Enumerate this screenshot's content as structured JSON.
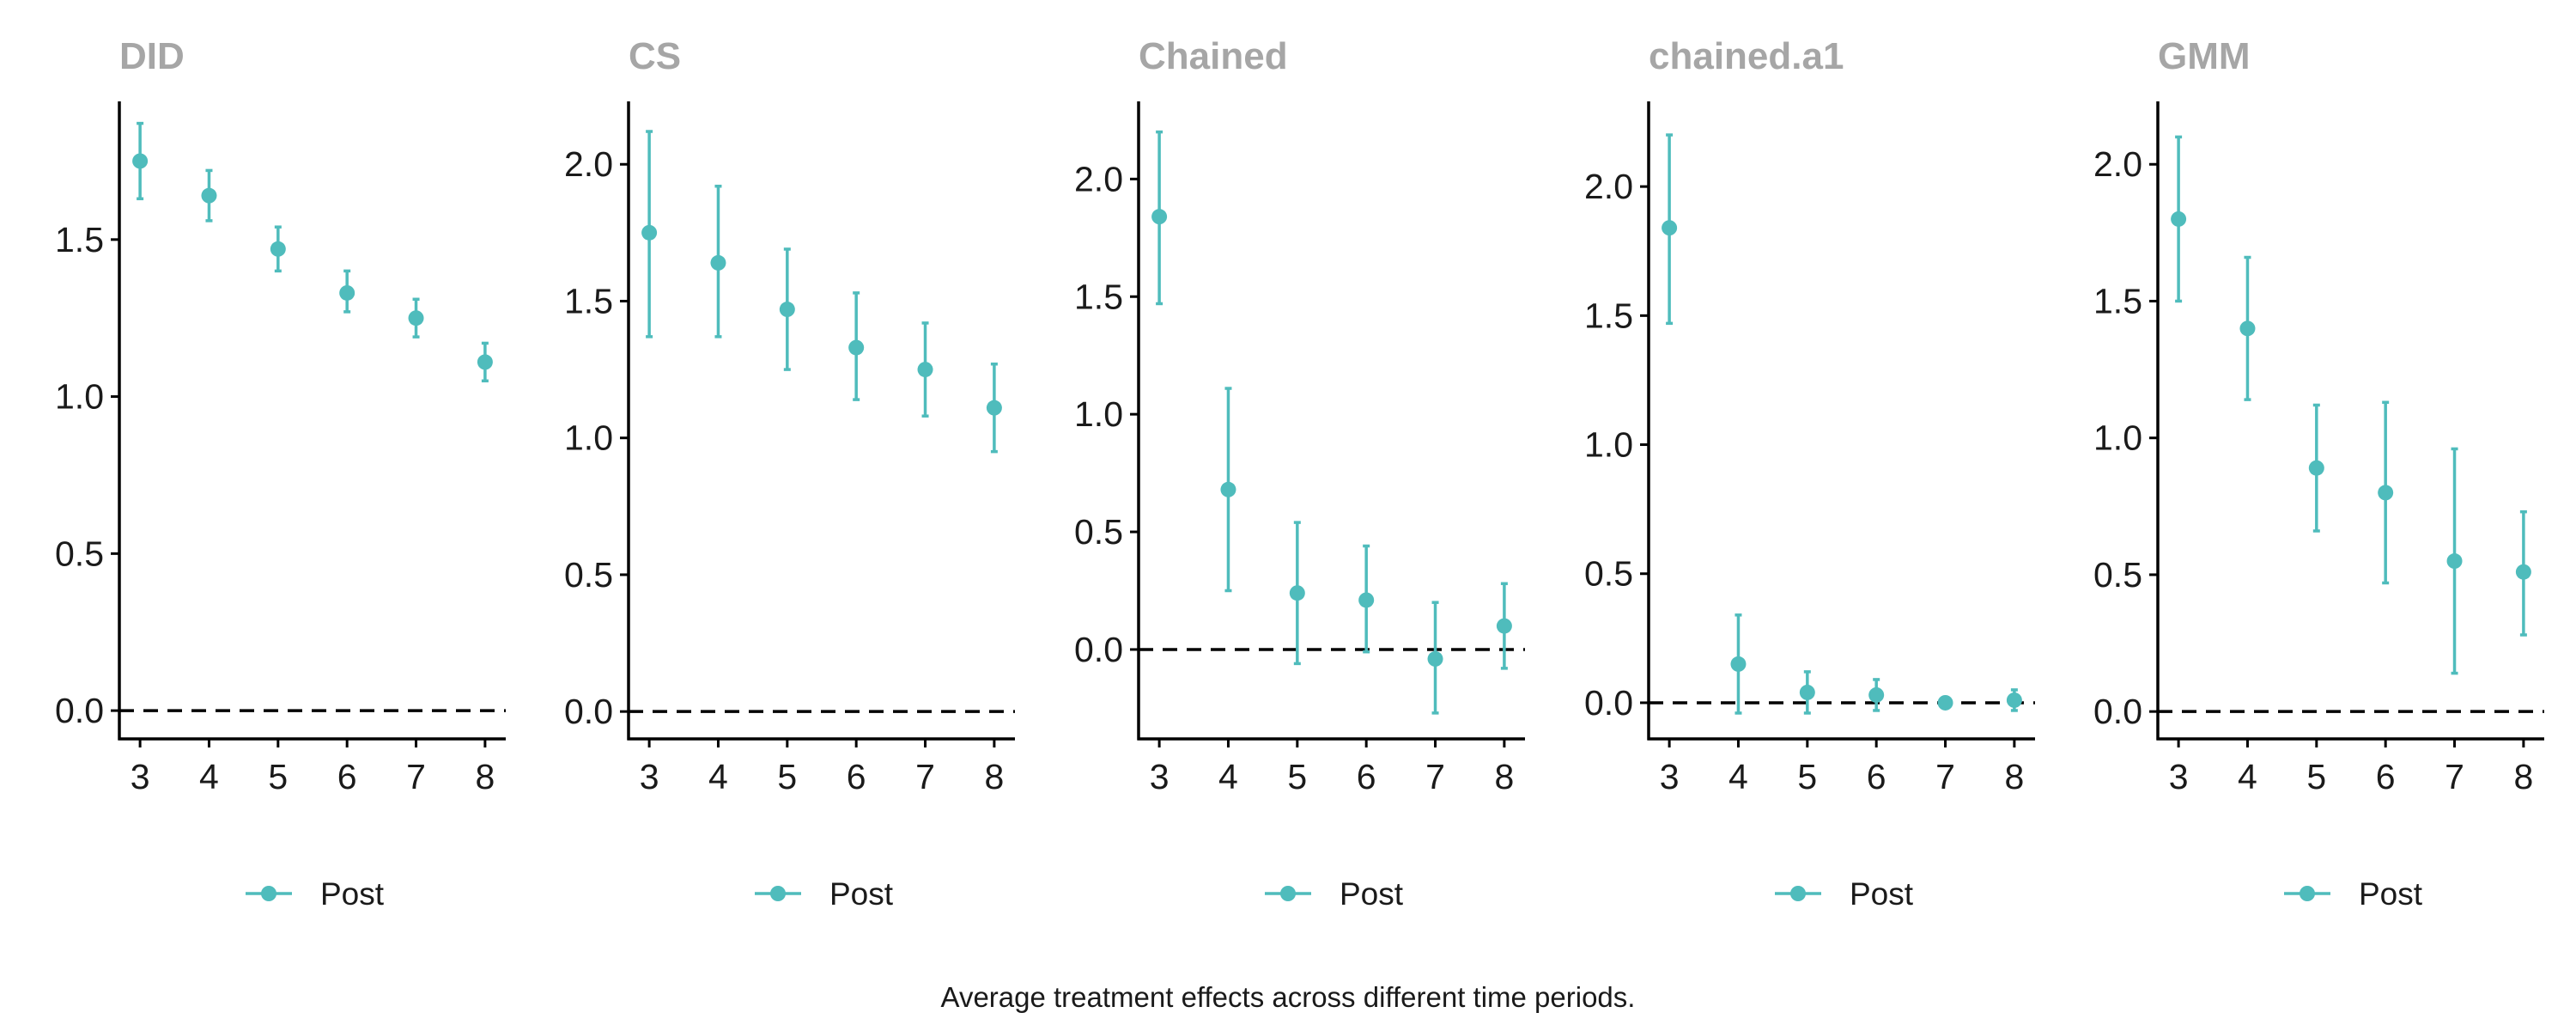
{
  "caption": "Average treatment effects across different time periods.",
  "colors": {
    "series": "#4fbcbc",
    "axis": "#000000",
    "title": "#a6a6a6",
    "reference_line": "#000000"
  },
  "chart_data": [
    {
      "type": "scatter",
      "title": "DID",
      "legend": "Post",
      "legend_position": "bottom",
      "grid": false,
      "reference_line": 0,
      "x": [
        3,
        4,
        5,
        6,
        7,
        8
      ],
      "ylim": [
        -0.09,
        1.94
      ],
      "yticks": [
        0.0,
        0.5,
        1.0,
        1.5
      ],
      "ytick_labels": [
        "0.0",
        "0.5",
        "1.0",
        "1.5"
      ],
      "series": [
        {
          "name": "Post",
          "y": [
            1.75,
            1.64,
            1.47,
            1.33,
            1.25,
            1.11
          ],
          "lower": [
            1.63,
            1.56,
            1.4,
            1.27,
            1.19,
            1.05
          ],
          "upper": [
            1.87,
            1.72,
            1.54,
            1.4,
            1.31,
            1.17
          ]
        }
      ]
    },
    {
      "type": "scatter",
      "title": "CS",
      "legend": "Post",
      "legend_position": "bottom",
      "grid": false,
      "reference_line": 0,
      "x": [
        3,
        4,
        5,
        6,
        7,
        8
      ],
      "ylim": [
        -0.1,
        2.23
      ],
      "yticks": [
        0.0,
        0.5,
        1.0,
        1.5,
        2.0
      ],
      "ytick_labels": [
        "0.0",
        "0.5",
        "1.0",
        "1.5",
        "2.0"
      ],
      "series": [
        {
          "name": "Post",
          "y": [
            1.75,
            1.64,
            1.47,
            1.33,
            1.25,
            1.11
          ],
          "lower": [
            1.37,
            1.37,
            1.25,
            1.14,
            1.08,
            0.95
          ],
          "upper": [
            2.12,
            1.92,
            1.69,
            1.53,
            1.42,
            1.27
          ]
        }
      ]
    },
    {
      "type": "scatter",
      "title": "Chained",
      "legend": "Post",
      "legend_position": "bottom",
      "grid": false,
      "reference_line": 0,
      "x": [
        3,
        4,
        5,
        6,
        7,
        8
      ],
      "ylim": [
        -0.38,
        2.33
      ],
      "yticks": [
        0.0,
        0.5,
        1.0,
        1.5,
        2.0
      ],
      "ytick_labels": [
        "0.0",
        "0.5",
        "1.0",
        "1.5",
        "2.0"
      ],
      "series": [
        {
          "name": "Post",
          "y": [
            1.84,
            0.68,
            0.24,
            0.21,
            -0.04,
            0.1
          ],
          "lower": [
            1.47,
            0.25,
            -0.06,
            -0.01,
            -0.27,
            -0.08
          ],
          "upper": [
            2.2,
            1.11,
            0.54,
            0.44,
            0.2,
            0.28
          ]
        }
      ]
    },
    {
      "type": "scatter",
      "title": "chained.a1",
      "legend": "Post",
      "legend_position": "bottom",
      "grid": false,
      "reference_line": 0,
      "x": [
        3,
        4,
        5,
        6,
        7,
        8
      ],
      "ylim": [
        -0.14,
        2.33
      ],
      "yticks": [
        0.0,
        0.5,
        1.0,
        1.5,
        2.0
      ],
      "ytick_labels": [
        "0.0",
        "0.5",
        "1.0",
        "1.5",
        "2.0"
      ],
      "series": [
        {
          "name": "Post",
          "y": [
            1.84,
            0.15,
            0.04,
            0.03,
            0.0,
            0.01
          ],
          "lower": [
            1.47,
            -0.04,
            -0.04,
            -0.03,
            -0.02,
            -0.03
          ],
          "upper": [
            2.2,
            0.34,
            0.12,
            0.09,
            0.02,
            0.05
          ]
        }
      ]
    },
    {
      "type": "scatter",
      "title": "GMM",
      "legend": "Post",
      "legend_position": "bottom",
      "grid": false,
      "reference_line": 0,
      "x": [
        3,
        4,
        5,
        6,
        7,
        8
      ],
      "ylim": [
        -0.1,
        2.23
      ],
      "yticks": [
        0.0,
        0.5,
        1.0,
        1.5,
        2.0
      ],
      "ytick_labels": [
        "0.0",
        "0.5",
        "1.0",
        "1.5",
        "2.0"
      ],
      "series": [
        {
          "name": "Post",
          "y": [
            1.8,
            1.4,
            0.89,
            0.8,
            0.55,
            0.51
          ],
          "lower": [
            1.5,
            1.14,
            0.66,
            0.47,
            0.14,
            0.28
          ],
          "upper": [
            2.1,
            1.66,
            1.12,
            1.13,
            0.96,
            0.73
          ]
        }
      ]
    }
  ]
}
